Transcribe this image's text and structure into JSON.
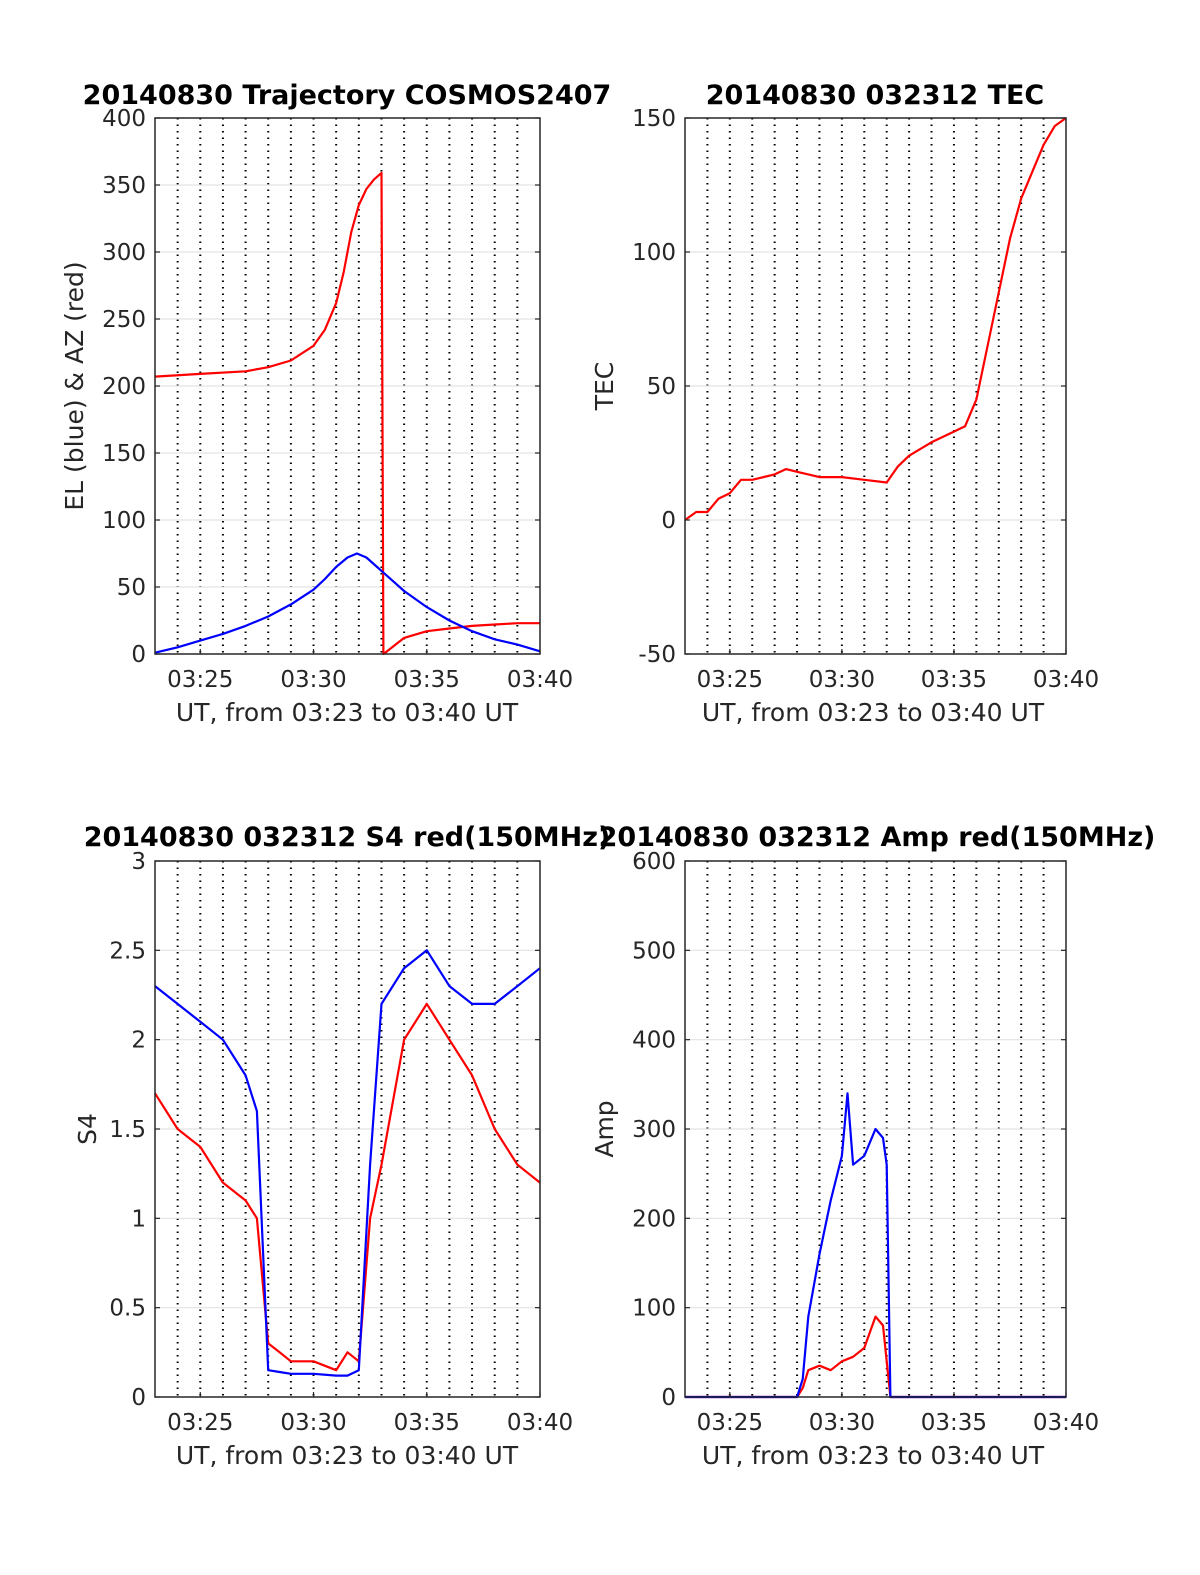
{
  "chart_data": [
    {
      "type": "line",
      "title": "20140830 Trajectory COSMOS2407",
      "xlabel": "UT, from 03:23 to 03:40 UT",
      "ylabel": "EL (blue) & AZ (red)",
      "xlim": [
        "03:23:00",
        "03:40:00"
      ],
      "ylim": [
        0,
        400
      ],
      "xticks": [
        "03:25",
        "03:30",
        "03:35",
        "03:40"
      ],
      "yticks": [
        "0",
        "50",
        "100",
        "150",
        "200",
        "250",
        "300",
        "350",
        "400"
      ],
      "grid": "vertical dotted lines every minute, light horizontal lines at y ticks",
      "series": [
        {
          "color": "#ff0000",
          "x": [
            "03:23:00",
            "03:25:00",
            "03:27:00",
            "03:28:00",
            "03:29:00",
            "03:30:00",
            "03:30:30",
            "03:31:00",
            "03:31:20",
            "03:31:40",
            "03:32:00",
            "03:32:20",
            "03:32:40",
            "03:33:00",
            "03:33:05",
            "03:33:15",
            "03:34:00",
            "03:35:00",
            "03:36:00",
            "03:37:00",
            "03:38:00",
            "03:39:00",
            "03:40:00"
          ],
          "y": [
            207,
            209,
            211,
            214,
            219,
            230,
            242,
            262,
            285,
            315,
            335,
            347,
            354,
            359,
            0,
            2,
            12,
            17,
            19,
            21,
            22,
            23,
            23
          ]
        },
        {
          "color": "#0000ff",
          "x": [
            "03:23:00",
            "03:24:00",
            "03:25:00",
            "03:26:00",
            "03:27:00",
            "03:28:00",
            "03:29:00",
            "03:30:00",
            "03:30:30",
            "03:31:00",
            "03:31:30",
            "03:31:55",
            "03:32:20",
            "03:33:00",
            "03:34:00",
            "03:35:00",
            "03:36:00",
            "03:37:00",
            "03:38:00",
            "03:39:00",
            "03:40:00"
          ],
          "y": [
            1,
            5,
            10,
            15,
            21,
            28,
            37,
            48,
            56,
            65,
            72,
            75,
            72,
            62,
            47,
            35,
            25,
            17,
            11,
            7,
            2
          ]
        }
      ]
    },
    {
      "type": "line",
      "title": "20140830 032312 TEC",
      "xlabel": "UT, from 03:23 to 03:40 UT",
      "ylabel": "TEC",
      "xlim": [
        "03:23:00",
        "03:40:00"
      ],
      "ylim": [
        -50,
        150
      ],
      "xticks": [
        "03:25",
        "03:30",
        "03:35",
        "03:40"
      ],
      "yticks": [
        "-50",
        "0",
        "50",
        "100",
        "150"
      ],
      "grid": "vertical dotted lines every minute, light horizontal lines at y ticks",
      "series": [
        {
          "color": "#ff0000",
          "x": [
            "03:23:00",
            "03:23:30",
            "03:24:00",
            "03:24:30",
            "03:25:00",
            "03:25:30",
            "03:26:00",
            "03:27:00",
            "03:27:30",
            "03:28:00",
            "03:29:00",
            "03:30:00",
            "03:31:00",
            "03:32:00",
            "03:32:30",
            "03:33:00",
            "03:34:00",
            "03:35:00",
            "03:35:30",
            "03:36:00",
            "03:36:30",
            "03:37:00",
            "03:37:30",
            "03:38:00",
            "03:38:30",
            "03:39:00",
            "03:39:30",
            "03:40:00"
          ],
          "y": [
            0,
            3,
            3,
            8,
            10,
            15,
            15,
            17,
            19,
            18,
            16,
            16,
            15,
            14,
            20,
            24,
            29,
            33,
            35,
            45,
            65,
            85,
            105,
            120,
            130,
            140,
            147,
            150
          ]
        }
      ]
    },
    {
      "type": "line",
      "title": "20140830 032312 S4 red(150MHz)",
      "xlabel": "UT, from 03:23 to 03:40 UT",
      "ylabel": "S4",
      "xlim": [
        "03:23:00",
        "03:40:00"
      ],
      "ylim": [
        0,
        3
      ],
      "xticks": [
        "03:25",
        "03:30",
        "03:35",
        "03:40"
      ],
      "yticks": [
        "0",
        "0.5",
        "1",
        "1.5",
        "2",
        "2.5",
        "3"
      ],
      "grid": "vertical dotted lines every minute, light horizontal lines at y ticks",
      "series": [
        {
          "color": "#ff0000",
          "x": [
            "03:23:00",
            "03:24:00",
            "03:25:00",
            "03:26:00",
            "03:27:00",
            "03:27:30",
            "03:28:00",
            "03:28:30",
            "03:29:00",
            "03:30:00",
            "03:31:00",
            "03:31:30",
            "03:32:00",
            "03:32:30",
            "03:33:00",
            "03:34:00",
            "03:35:00",
            "03:36:00",
            "03:37:00",
            "03:38:00",
            "03:39:00",
            "03:40:00"
          ],
          "y": [
            1.7,
            1.5,
            1.4,
            1.2,
            1.1,
            1.0,
            0.3,
            0.25,
            0.2,
            0.2,
            0.15,
            0.25,
            0.2,
            1.0,
            1.3,
            2.0,
            2.2,
            2.0,
            1.8,
            1.5,
            1.3,
            1.2
          ]
        },
        {
          "color": "#0000ff",
          "x": [
            "03:23:00",
            "03:24:00",
            "03:25:00",
            "03:26:00",
            "03:27:00",
            "03:27:30",
            "03:28:00",
            "03:28:30",
            "03:29:00",
            "03:30:00",
            "03:31:00",
            "03:31:30",
            "03:32:00",
            "03:32:30",
            "03:33:00",
            "03:34:00",
            "03:35:00",
            "03:36:00",
            "03:37:00",
            "03:38:00",
            "03:39:00",
            "03:40:00"
          ],
          "y": [
            2.3,
            2.2,
            2.1,
            2.0,
            1.8,
            1.6,
            0.15,
            0.14,
            0.13,
            0.13,
            0.12,
            0.12,
            0.15,
            1.3,
            2.2,
            2.4,
            2.5,
            2.3,
            2.2,
            2.2,
            2.3,
            2.4
          ]
        }
      ]
    },
    {
      "type": "line",
      "title": "20140830 032312 Amp red(150MHz)",
      "xlabel": "UT, from 03:23 to 03:40 UT",
      "ylabel": "Amp",
      "xlim": [
        "03:23:00",
        "03:40:00"
      ],
      "ylim": [
        0,
        600
      ],
      "xticks": [
        "03:25",
        "03:30",
        "03:35",
        "03:40"
      ],
      "yticks": [
        "0",
        "100",
        "200",
        "300",
        "400",
        "500",
        "600"
      ],
      "grid": "vertical dotted lines every minute, light horizontal lines at y ticks",
      "series": [
        {
          "color": "#ff0000",
          "x": [
            "03:23:00",
            "03:28:00",
            "03:28:15",
            "03:28:30",
            "03:29:00",
            "03:29:30",
            "03:30:00",
            "03:30:30",
            "03:31:00",
            "03:31:30",
            "03:31:50",
            "03:32:00",
            "03:32:10",
            "03:33:00",
            "03:40:00"
          ],
          "y": [
            0,
            0,
            10,
            30,
            35,
            30,
            40,
            45,
            55,
            90,
            80,
            40,
            0,
            0,
            0
          ]
        },
        {
          "color": "#0000ff",
          "x": [
            "03:23:00",
            "03:28:00",
            "03:28:15",
            "03:28:30",
            "03:29:00",
            "03:29:30",
            "03:30:00",
            "03:30:15",
            "03:30:30",
            "03:31:00",
            "03:31:30",
            "03:31:50",
            "03:32:00",
            "03:32:10",
            "03:33:00",
            "03:40:00"
          ],
          "y": [
            0,
            0,
            20,
            90,
            160,
            220,
            270,
            340,
            260,
            270,
            300,
            290,
            260,
            0,
            0,
            0
          ]
        }
      ]
    }
  ]
}
